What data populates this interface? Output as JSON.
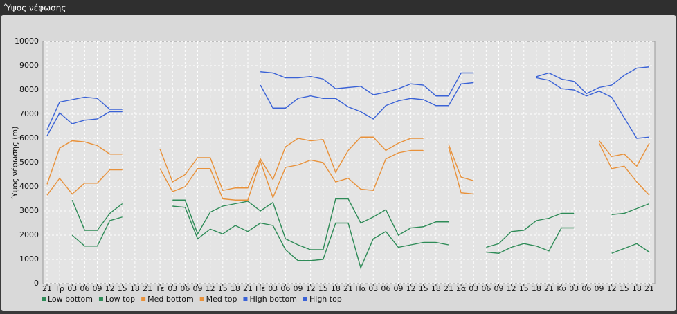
{
  "window": {
    "title": "Ύψος νέφωσης"
  },
  "chart_data": {
    "type": "line",
    "ylabel": "Ύψος νέφωσης (m)",
    "categories": [
      "21",
      "Τρ",
      "03",
      "06",
      "09",
      "12",
      "15",
      "18",
      "21",
      "Τε",
      "03",
      "06",
      "09",
      "12",
      "15",
      "18",
      "21",
      "Πέ",
      "03",
      "06",
      "09",
      "12",
      "15",
      "18",
      "21",
      "Πα",
      "03",
      "06",
      "09",
      "12",
      "15",
      "18",
      "21",
      "Σά",
      "03",
      "06",
      "09",
      "12",
      "15",
      "18",
      "21",
      "Κυ",
      "03",
      "06",
      "09",
      "12",
      "15",
      "18",
      "21"
    ],
    "ylim": [
      0,
      10000
    ],
    "yticks": [
      0,
      1000,
      2000,
      3000,
      4000,
      5000,
      6000,
      7000,
      8000,
      9000,
      10000
    ],
    "grid": true,
    "series": [
      {
        "name": "Low bottom",
        "color": "#2e8b57",
        "values": [
          null,
          null,
          2000,
          1550,
          1550,
          2600,
          2750,
          null,
          null,
          null,
          3200,
          3150,
          1850,
          2250,
          2050,
          2400,
          2150,
          2500,
          2400,
          1400,
          950,
          950,
          1000,
          2500,
          2500,
          650,
          1850,
          2150,
          1500,
          1600,
          1700,
          1700,
          1600,
          null,
          null,
          1300,
          1250,
          1500,
          1650,
          1550,
          1350,
          2300,
          2300,
          null,
          null,
          1250,
          1450,
          1650,
          1300
        ]
      },
      {
        "name": "Low top",
        "color": "#2e8b57",
        "values": [
          null,
          null,
          3450,
          2200,
          2200,
          2900,
          3300,
          null,
          null,
          null,
          3450,
          3450,
          2050,
          2950,
          3200,
          3300,
          3400,
          3000,
          3350,
          1850,
          1600,
          1400,
          1400,
          3500,
          3500,
          2500,
          2750,
          3050,
          2000,
          2300,
          2350,
          2550,
          2550,
          null,
          null,
          1500,
          1650,
          2150,
          2200,
          2600,
          2700,
          2900,
          2900,
          null,
          null,
          2850,
          2900,
          3100,
          3300
        ]
      },
      {
        "name": "Med bottom",
        "color": "#e8913a",
        "values": [
          3650,
          4350,
          3700,
          4150,
          4150,
          4700,
          4700,
          null,
          null,
          4750,
          3800,
          4000,
          4750,
          4750,
          3500,
          3450,
          3450,
          5050,
          3550,
          4800,
          4900,
          5100,
          5000,
          4200,
          4350,
          3900,
          3850,
          5150,
          5400,
          5500,
          5500,
          null,
          5650,
          3750,
          3700,
          null,
          null,
          null,
          null,
          null,
          null,
          null,
          null,
          null,
          5800,
          4750,
          4850,
          4200,
          3650
        ]
      },
      {
        "name": "Med top",
        "color": "#e8913a",
        "values": [
          4100,
          5600,
          5900,
          5850,
          5700,
          5350,
          5350,
          null,
          null,
          5550,
          4200,
          4500,
          5200,
          5200,
          3850,
          3950,
          3950,
          5150,
          4300,
          5650,
          6000,
          5900,
          5950,
          4600,
          5500,
          6050,
          6050,
          5500,
          5800,
          6000,
          6000,
          null,
          5750,
          4400,
          4250,
          null,
          null,
          null,
          null,
          null,
          null,
          null,
          null,
          null,
          5900,
          5250,
          5350,
          4850,
          5800
        ]
      },
      {
        "name": "High bottom",
        "color": "#3a62d6",
        "values": [
          6100,
          7050,
          6600,
          6750,
          6800,
          7100,
          7100,
          null,
          null,
          null,
          null,
          null,
          null,
          null,
          null,
          null,
          null,
          8200,
          7250,
          7250,
          7650,
          7750,
          7650,
          7650,
          7300,
          7100,
          6800,
          7350,
          7550,
          7650,
          7600,
          7350,
          7350,
          8250,
          8300,
          null,
          null,
          null,
          null,
          8500,
          8400,
          8050,
          8000,
          7750,
          7950,
          7700,
          6850,
          6000,
          6050
        ]
      },
      {
        "name": "High top",
        "color": "#3a62d6",
        "values": [
          6350,
          7500,
          7600,
          7700,
          7650,
          7200,
          7200,
          null,
          null,
          null,
          null,
          null,
          null,
          null,
          null,
          null,
          null,
          8750,
          8700,
          8500,
          8500,
          8550,
          8450,
          8050,
          8100,
          8150,
          7800,
          7900,
          8050,
          8250,
          8200,
          7750,
          7750,
          8700,
          8700,
          null,
          null,
          null,
          null,
          8550,
          8700,
          8450,
          8350,
          7850,
          8100,
          8200,
          8600,
          8900,
          8950
        ]
      }
    ]
  }
}
